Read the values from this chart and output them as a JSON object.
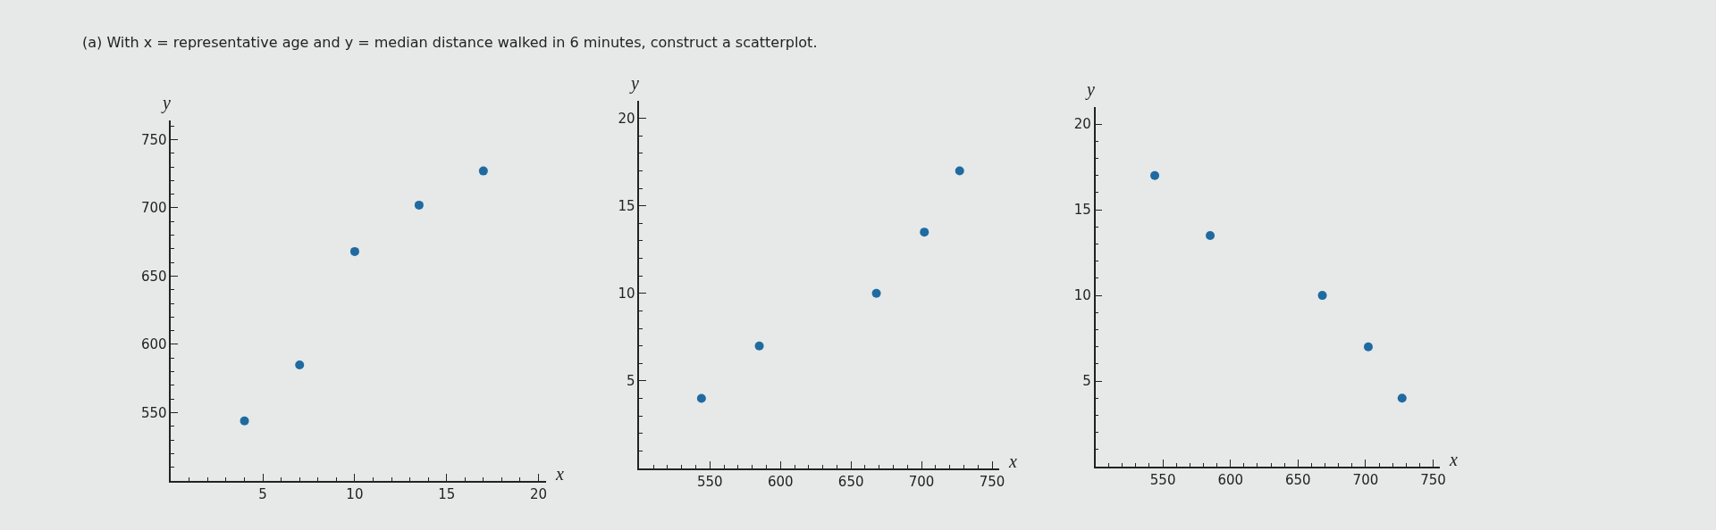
{
  "chart_data": [
    {
      "type": "scatter",
      "title": "(a) With x = representative age and y = median distance walked in 6 minutes, construct a scatterplot.",
      "xlabel": "x",
      "ylabel": "y",
      "x": [
        4,
        7,
        10,
        13.5,
        17
      ],
      "values": [
        544,
        585,
        668,
        702,
        727
      ],
      "color": "#1f6aa0",
      "marker": "circle",
      "xlim": [
        0,
        20.4
      ],
      "ylim": [
        500,
        764
      ],
      "xticks": [
        {
          "value": 1,
          "label": null
        },
        {
          "value": 2,
          "label": null
        },
        {
          "value": 3,
          "label": null
        },
        {
          "value": 4,
          "label": null
        },
        5,
        {
          "value": 6,
          "label": null
        },
        {
          "value": 7,
          "label": null
        },
        {
          "value": 8,
          "label": null
        },
        {
          "value": 9,
          "label": null
        },
        10,
        {
          "value": 11,
          "label": null
        },
        {
          "value": 12,
          "label": null
        },
        {
          "value": 13,
          "label": null
        },
        {
          "value": 14,
          "label": null
        },
        15,
        {
          "value": 16,
          "label": null
        },
        {
          "value": 17,
          "label": null
        },
        {
          "value": 18,
          "label": null
        },
        {
          "value": 19,
          "label": null
        },
        20
      ],
      "yticks": [
        {
          "value": 510,
          "label": null
        },
        {
          "value": 520,
          "label": null
        },
        {
          "value": 530,
          "label": null
        },
        {
          "value": 540,
          "label": null
        },
        550,
        {
          "value": 560,
          "label": null
        },
        {
          "value": 570,
          "label": null
        },
        {
          "value": 580,
          "label": null
        },
        {
          "value": 590,
          "label": null
        },
        600,
        {
          "value": 610,
          "label": null
        },
        {
          "value": 620,
          "label": null
        },
        {
          "value": 630,
          "label": null
        },
        {
          "value": 640,
          "label": null
        },
        650,
        {
          "value": 660,
          "label": null
        },
        {
          "value": 670,
          "label": null
        },
        {
          "value": 680,
          "label": null
        },
        {
          "value": 690,
          "label": null
        },
        700,
        {
          "value": 710,
          "label": null
        },
        {
          "value": 720,
          "label": null
        },
        {
          "value": 730,
          "label": null
        },
        {
          "value": 740,
          "label": null
        },
        750,
        {
          "value": 760,
          "label": null
        }
      ]
    },
    {
      "type": "scatter",
      "xlabel": "x",
      "ylabel": "y",
      "x": [
        544,
        585,
        668,
        702,
        727
      ],
      "values": [
        4,
        7,
        10,
        13.5,
        17
      ],
      "color": "#1f6aa0",
      "marker": "circle",
      "xlim": [
        500,
        755
      ],
      "ylim": [
        0,
        21
      ],
      "xticks": [
        {
          "value": 510,
          "label": null
        },
        {
          "value": 520,
          "label": null
        },
        {
          "value": 530,
          "label": null
        },
        {
          "value": 540,
          "label": null
        },
        550,
        {
          "value": 560,
          "label": null
        },
        {
          "value": 570,
          "label": null
        },
        {
          "value": 580,
          "label": null
        },
        {
          "value": 590,
          "label": null
        },
        600,
        {
          "value": 610,
          "label": null
        },
        {
          "value": 620,
          "label": null
        },
        {
          "value": 630,
          "label": null
        },
        {
          "value": 640,
          "label": null
        },
        650,
        {
          "value": 660,
          "label": null
        },
        {
          "value": 670,
          "label": null
        },
        {
          "value": 680,
          "label": null
        },
        {
          "value": 690,
          "label": null
        },
        700,
        {
          "value": 710,
          "label": null
        },
        {
          "value": 720,
          "label": null
        },
        {
          "value": 730,
          "label": null
        },
        {
          "value": 740,
          "label": null
        },
        750
      ],
      "yticks": [
        {
          "value": 1,
          "label": null
        },
        {
          "value": 2,
          "label": null
        },
        {
          "value": 3,
          "label": null
        },
        {
          "value": 4,
          "label": null
        },
        5,
        {
          "value": 6,
          "label": null
        },
        {
          "value": 7,
          "label": null
        },
        {
          "value": 8,
          "label": null
        },
        {
          "value": 9,
          "label": null
        },
        10,
        {
          "value": 11,
          "label": null
        },
        {
          "value": 12,
          "label": null
        },
        {
          "value": 13,
          "label": null
        },
        {
          "value": 14,
          "label": null
        },
        15,
        {
          "value": 16,
          "label": null
        },
        {
          "value": 17,
          "label": null
        },
        {
          "value": 18,
          "label": null
        },
        {
          "value": 19,
          "label": null
        },
        20
      ]
    },
    {
      "type": "scatter",
      "xlabel": "x",
      "ylabel": "y",
      "x": [
        544,
        585,
        668,
        702,
        727
      ],
      "values": [
        17,
        13.5,
        10,
        7,
        4
      ],
      "color": "#1f6aa0",
      "marker": "circle",
      "xlim": [
        500,
        755
      ],
      "ylim": [
        0,
        21
      ],
      "xticks": [
        {
          "value": 510,
          "label": null
        },
        {
          "value": 520,
          "label": null
        },
        {
          "value": 530,
          "label": null
        },
        {
          "value": 540,
          "label": null
        },
        550,
        {
          "value": 560,
          "label": null
        },
        {
          "value": 570,
          "label": null
        },
        {
          "value": 580,
          "label": null
        },
        {
          "value": 590,
          "label": null
        },
        600,
        {
          "value": 610,
          "label": null
        },
        {
          "value": 620,
          "label": null
        },
        {
          "value": 630,
          "label": null
        },
        {
          "value": 640,
          "label": null
        },
        650,
        {
          "value": 660,
          "label": null
        },
        {
          "value": 670,
          "label": null
        },
        {
          "value": 680,
          "label": null
        },
        {
          "value": 690,
          "label": null
        },
        700,
        {
          "value": 710,
          "label": null
        },
        {
          "value": 720,
          "label": null
        },
        {
          "value": 730,
          "label": null
        },
        {
          "value": 740,
          "label": null
        },
        750
      ],
      "yticks": [
        {
          "value": 1,
          "label": null
        },
        {
          "value": 2,
          "label": null
        },
        {
          "value": 3,
          "label": null
        },
        {
          "value": 4,
          "label": null
        },
        5,
        {
          "value": 6,
          "label": null
        },
        {
          "value": 7,
          "label": null
        },
        {
          "value": 8,
          "label": null
        },
        {
          "value": 9,
          "label": null
        },
        10,
        {
          "value": 11,
          "label": null
        },
        {
          "value": 12,
          "label": null
        },
        {
          "value": 13,
          "label": null
        },
        {
          "value": 14,
          "label": null
        },
        15,
        {
          "value": 16,
          "label": null
        },
        {
          "value": 17,
          "label": null
        },
        {
          "value": 18,
          "label": null
        },
        {
          "value": 19,
          "label": null
        },
        20
      ]
    }
  ]
}
